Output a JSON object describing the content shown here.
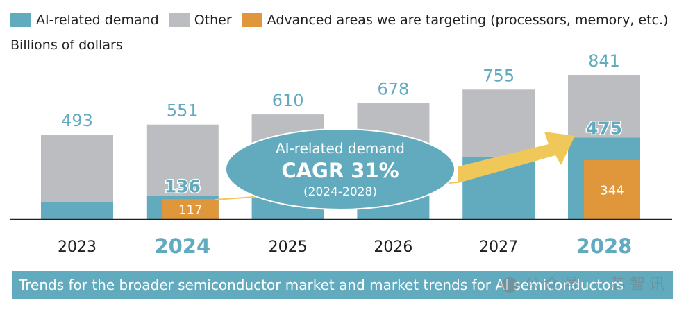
{
  "legend": [
    {
      "label": "AI-related demand",
      "color": "#62abbf"
    },
    {
      "label": "Other",
      "color": "#bcbdc0"
    },
    {
      "label": "Advanced areas we are targeting (processors, memory, etc.)",
      "color": "#e0973b"
    }
  ],
  "unit_label": "Billions of dollars",
  "callout": {
    "line1": "AI-related demand",
    "line2": "CAGR 31%",
    "line3": "(2024-2028)"
  },
  "footer": "Trends for the broader semiconductor market and market trends for AI semiconductors",
  "watermark": "公众号 · 芯智讯",
  "colors": {
    "ai": "#62abbf",
    "other": "#bcbdc0",
    "advanced": "#e0973b",
    "arrow": "#f0c85a",
    "highlight_year": "#62abbf",
    "year": "#231f20"
  },
  "chart_data": {
    "type": "bar",
    "stacked": true,
    "title": "",
    "xlabel": "",
    "ylabel": "Billions of dollars",
    "ylim": [
      0,
      900
    ],
    "grid": false,
    "legend_position": "top-left",
    "categories": [
      "2023",
      "2024",
      "2025",
      "2026",
      "2027",
      "2028"
    ],
    "highlighted_categories": [
      "2024",
      "2028"
    ],
    "totals": [
      493,
      551,
      610,
      678,
      755,
      841
    ],
    "series": [
      {
        "name": "AI-related demand",
        "values": [
          97,
          136,
          200,
          270,
          364,
          475
        ],
        "labeled": [
          false,
          true,
          false,
          false,
          false,
          true
        ]
      },
      {
        "name": "Other",
        "values": [
          396,
          415,
          410,
          408,
          391,
          366
        ]
      },
      {
        "name": "Advanced areas we are targeting (processors, memory, etc.)",
        "values": [
          null,
          117,
          null,
          null,
          null,
          344
        ],
        "labeled": [
          false,
          true,
          false,
          false,
          false,
          true
        ]
      }
    ],
    "annotations": [
      {
        "text": "AI-related demand CAGR 31% (2024-2028)",
        "type": "arrow",
        "from": "2024",
        "to": "2028"
      }
    ]
  }
}
